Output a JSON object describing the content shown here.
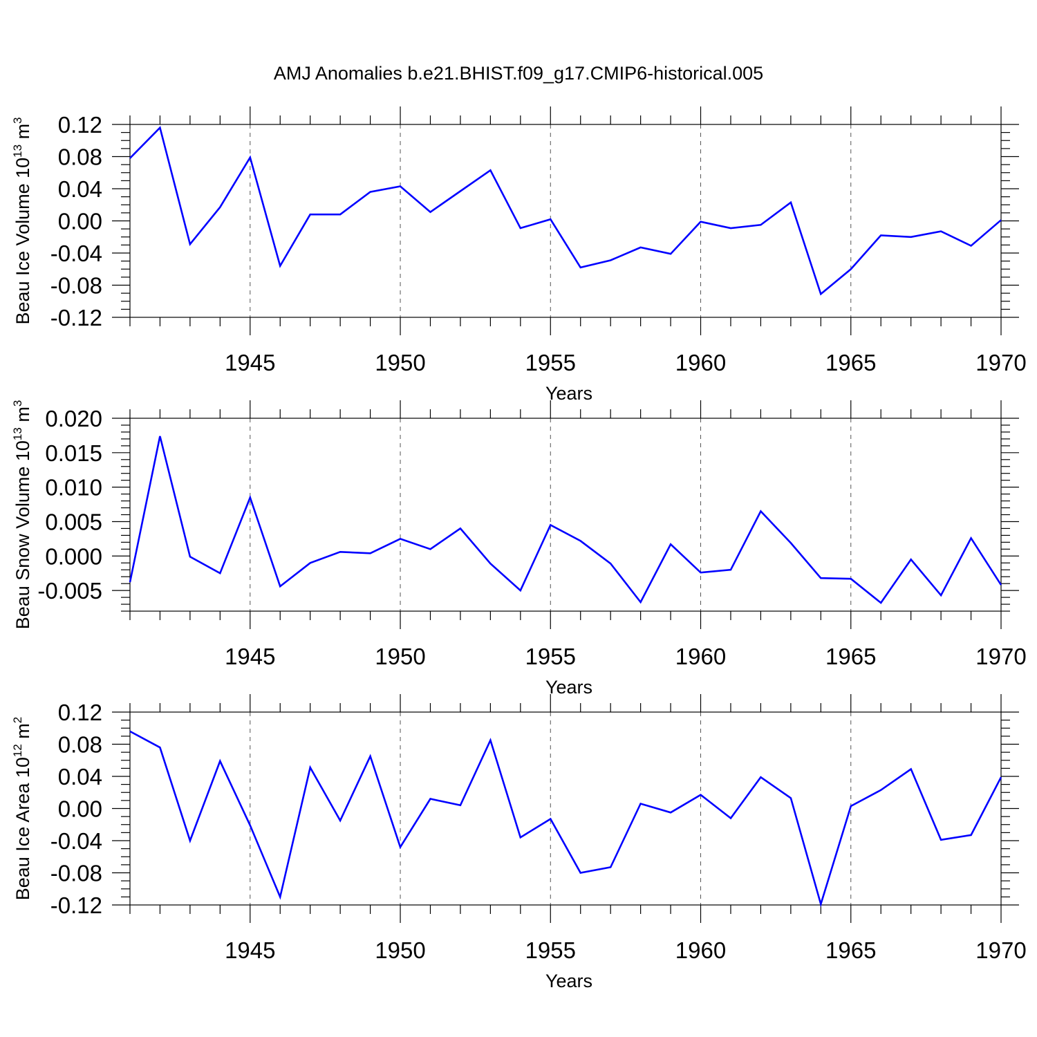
{
  "chart_data": {
    "title": "AMJ Anomalies b.e21.BHIST.f09_g17.CMIP6-historical.005",
    "type": "line",
    "line_color": "#0000ff",
    "grid": "dashed vertical lines at major x ticks",
    "panels": [
      {
        "id": "ice-volume",
        "type": "line",
        "ylabel": "Beau Ice Volume 10",
        "ylabel_exponent": "13",
        "ylabel_unit": " m",
        "ylabel_unit_exponent": "3",
        "xlabel": "Years",
        "xlim": [
          1941,
          1970
        ],
        "ylim": [
          -0.12,
          0.12
        ],
        "yticks": [
          -0.12,
          -0.08,
          -0.04,
          0.0,
          0.04,
          0.08,
          0.12
        ],
        "ytick_labels": [
          "-0.12",
          "-0.08",
          "-0.04",
          "0.00",
          "0.04",
          "0.08",
          "0.12"
        ],
        "yminor_step": 0.01,
        "xticks": [
          1945,
          1950,
          1955,
          1960,
          1965,
          1970
        ],
        "xtick_labels": [
          "1945",
          "1950",
          "1955",
          "1960",
          "1965",
          "1970"
        ],
        "x": [
          1941,
          1942,
          1943,
          1944,
          1945,
          1946,
          1947,
          1948,
          1949,
          1950,
          1951,
          1952,
          1953,
          1954,
          1955,
          1956,
          1957,
          1958,
          1959,
          1960,
          1961,
          1962,
          1963,
          1964,
          1965,
          1966,
          1967,
          1968,
          1969,
          1970
        ],
        "y": [
          0.078,
          0.116,
          -0.029,
          0.017,
          0.079,
          -0.056,
          0.008,
          0.008,
          0.036,
          0.043,
          0.011,
          0.037,
          0.063,
          -0.009,
          0.002,
          -0.058,
          -0.049,
          -0.033,
          -0.041,
          -0.001,
          -0.009,
          -0.005,
          0.023,
          -0.091,
          -0.06,
          -0.018,
          -0.02,
          -0.013,
          -0.031,
          0.001
        ]
      },
      {
        "id": "snow-volume",
        "type": "line",
        "ylabel": "Beau Snow Volume 10",
        "ylabel_exponent": "13",
        "ylabel_unit": " m",
        "ylabel_unit_exponent": "3",
        "xlabel": "Years",
        "xlim": [
          1941,
          1970
        ],
        "ylim": [
          -0.008,
          0.02
        ],
        "yticks": [
          -0.005,
          0.0,
          0.005,
          0.01,
          0.015,
          0.02
        ],
        "ytick_labels": [
          "-0.005",
          "0.000",
          "0.005",
          "0.010",
          "0.015",
          "0.020"
        ],
        "yminor_step": 0.001,
        "xticks": [
          1945,
          1950,
          1955,
          1960,
          1965,
          1970
        ],
        "xtick_labels": [
          "1945",
          "1950",
          "1955",
          "1960",
          "1965",
          "1970"
        ],
        "x": [
          1941,
          1942,
          1943,
          1944,
          1945,
          1946,
          1947,
          1948,
          1949,
          1950,
          1951,
          1952,
          1953,
          1954,
          1955,
          1956,
          1957,
          1958,
          1959,
          1960,
          1961,
          1962,
          1963,
          1964,
          1965,
          1966,
          1967,
          1968,
          1969,
          1970
        ],
        "y": [
          -0.0038,
          0.0174,
          -0.0001,
          -0.0025,
          0.0085,
          -0.0044,
          -0.001,
          0.0006,
          0.0004,
          0.0025,
          0.001,
          0.004,
          -0.0011,
          -0.005,
          0.0045,
          0.0022,
          -0.0011,
          -0.0067,
          0.0017,
          -0.0024,
          -0.002,
          0.0065,
          0.0019,
          -0.0032,
          -0.0033,
          -0.0068,
          -0.0005,
          -0.0057,
          0.0026,
          -0.0042
        ]
      },
      {
        "id": "ice-area",
        "type": "line",
        "ylabel": "Beau Ice Area 10",
        "ylabel_exponent": "12",
        "ylabel_unit": " m",
        "ylabel_unit_exponent": "2",
        "xlabel": "Years",
        "xlim": [
          1941,
          1970
        ],
        "ylim": [
          -0.12,
          0.12
        ],
        "yticks": [
          -0.12,
          -0.08,
          -0.04,
          0.0,
          0.04,
          0.08,
          0.12
        ],
        "ytick_labels": [
          "-0.12",
          "-0.08",
          "-0.04",
          "0.00",
          "0.04",
          "0.08",
          "0.12"
        ],
        "yminor_step": 0.01,
        "xticks": [
          1945,
          1950,
          1955,
          1960,
          1965,
          1970
        ],
        "xtick_labels": [
          "1945",
          "1950",
          "1955",
          "1960",
          "1965",
          "1970"
        ],
        "x": [
          1941,
          1942,
          1943,
          1944,
          1945,
          1946,
          1947,
          1948,
          1949,
          1950,
          1951,
          1952,
          1953,
          1954,
          1955,
          1956,
          1957,
          1958,
          1959,
          1960,
          1961,
          1962,
          1963,
          1964,
          1965,
          1966,
          1967,
          1968,
          1969,
          1970
        ],
        "y": [
          0.096,
          0.076,
          -0.04,
          0.059,
          -0.021,
          -0.11,
          0.051,
          -0.015,
          0.065,
          -0.048,
          0.012,
          0.004,
          0.085,
          -0.036,
          -0.013,
          -0.08,
          -0.073,
          0.006,
          -0.005,
          0.017,
          -0.012,
          0.039,
          0.013,
          -0.119,
          0.003,
          0.023,
          0.049,
          -0.039,
          -0.033,
          0.039
        ]
      }
    ]
  }
}
